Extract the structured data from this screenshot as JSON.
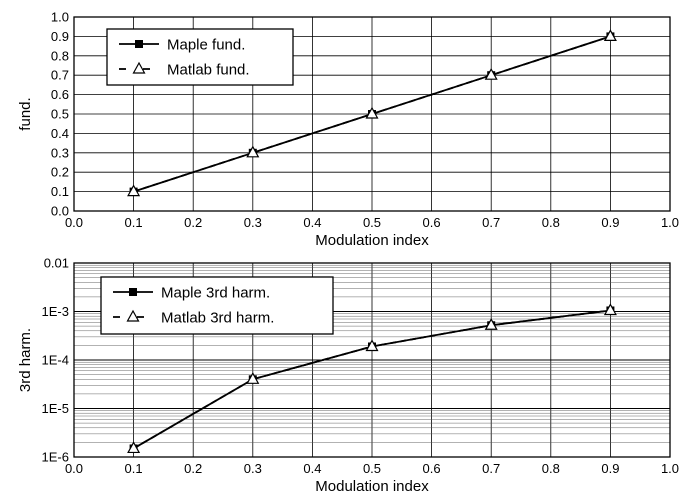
{
  "chart_data": [
    {
      "type": "line",
      "xlabel": "Modulation index",
      "ylabel": "fund.",
      "xlim": [
        0.0,
        1.0
      ],
      "ylim": [
        0.0,
        1.0
      ],
      "y_scale": "linear",
      "grid": true,
      "legend_placement": "top-left",
      "x_tick_labels": [
        "0.0",
        "0.1",
        "0.2",
        "0.3",
        "0.4",
        "0.5",
        "0.6",
        "0.7",
        "0.8",
        "0.9",
        "1.0"
      ],
      "y_tick_labels": [
        "0.0",
        "0.1",
        "0.2",
        "0.3",
        "0.4",
        "0.5",
        "0.6",
        "0.7",
        "0.8",
        "0.9",
        "1.0"
      ],
      "x": [
        0.1,
        0.3,
        0.5,
        0.7,
        0.9
      ],
      "series": [
        {
          "name": "Maple fund.",
          "marker": "filled-square",
          "values": [
            0.1,
            0.3,
            0.5,
            0.7,
            0.9
          ]
        },
        {
          "name": "Matlab fund.",
          "marker": "open-triangle",
          "values": [
            0.1,
            0.3,
            0.5,
            0.7,
            0.9
          ]
        }
      ]
    },
    {
      "type": "line",
      "xlabel": "Modulation index",
      "ylabel": "3rd harm.",
      "xlim": [
        0.0,
        1.0
      ],
      "ylim": [
        1e-06,
        0.01
      ],
      "y_scale": "log",
      "grid": true,
      "legend_placement": "top-left",
      "x_tick_labels": [
        "0.0",
        "0.1",
        "0.2",
        "0.3",
        "0.4",
        "0.5",
        "0.6",
        "0.7",
        "0.8",
        "0.9",
        "1.0"
      ],
      "y_tick_labels": [
        "1E-6",
        "1E-5",
        "1E-4",
        "1E-3",
        "0.01"
      ],
      "x": [
        0.1,
        0.3,
        0.5,
        0.7,
        0.9
      ],
      "series": [
        {
          "name": "Maple 3rd  harm.",
          "marker": "filled-square",
          "values": [
            1.5e-06,
            4e-05,
            0.00019,
            0.00052,
            0.00105
          ]
        },
        {
          "name": "Matlab 3rd harm.",
          "marker": "open-triangle",
          "values": [
            1.5e-06,
            4e-05,
            0.00019,
            0.00052,
            0.00105
          ]
        }
      ]
    }
  ]
}
